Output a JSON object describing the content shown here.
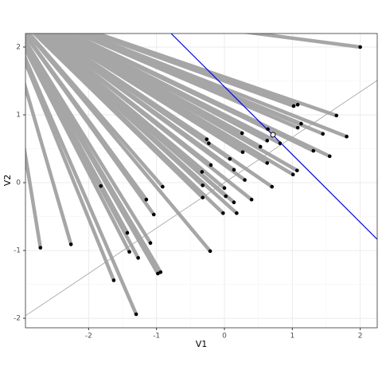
{
  "chart_data": {
    "type": "scatter",
    "xlabel": "V1",
    "ylabel": "V2",
    "x": [
      2.0,
      -2.71,
      -2.26,
      -1.82,
      -1.43,
      -1.4,
      -1.27,
      -1.63,
      -1.3,
      -1.15,
      -0.91,
      -1.04,
      -1.09,
      -0.98,
      -0.94,
      -0.26,
      -0.23,
      -0.33,
      -0.2,
      -0.32,
      -0.32,
      -0.21,
      0.0,
      0.02,
      0.08,
      0.14,
      0.26,
      0.27,
      0.3,
      0.14,
      0.18,
      -0.02,
      0.4,
      0.53,
      0.63,
      0.64,
      0.63,
      0.7,
      0.82,
      1.02,
      1.08,
      1.13,
      1.08,
      1.01,
      1.07,
      1.31,
      1.45,
      1.65,
      1.55,
      1.8
    ],
    "values": [
      2.0,
      -0.96,
      -0.91,
      -0.05,
      -0.74,
      -1.02,
      -1.11,
      -1.44,
      -1.94,
      -0.25,
      -0.06,
      -0.47,
      -0.89,
      -1.34,
      -1.32,
      0.64,
      0.58,
      0.16,
      0.26,
      -0.04,
      -0.22,
      -1.01,
      -0.08,
      -0.2,
      0.35,
      0.19,
      0.73,
      0.45,
      0.04,
      -0.29,
      -0.45,
      -0.45,
      -0.25,
      0.53,
      0.29,
      0.79,
      0.62,
      -0.06,
      0.58,
      1.13,
      1.15,
      0.87,
      0.81,
      0.12,
      0.18,
      0.47,
      0.72,
      0.99,
      0.39,
      0.68
    ],
    "color": "#000000",
    "segment_color": "#a6a6a6",
    "lines": [
      {
        "slope": -1,
        "intercept": 1.415,
        "color": "#0000ff"
      },
      {
        "slope": 0.67,
        "intercept": 0,
        "color": "#a0a0a0"
      }
    ],
    "highlight": {
      "x": 0.715,
      "y": 0.706
    },
    "xlim": [
      -2.93,
      2.25
    ],
    "ylim": [
      -2.14,
      2.2
    ],
    "xticks": [
      -2,
      -1,
      0,
      1,
      2
    ],
    "yticks": [
      -2,
      -1,
      0,
      1,
      2
    ],
    "grid": true
  }
}
